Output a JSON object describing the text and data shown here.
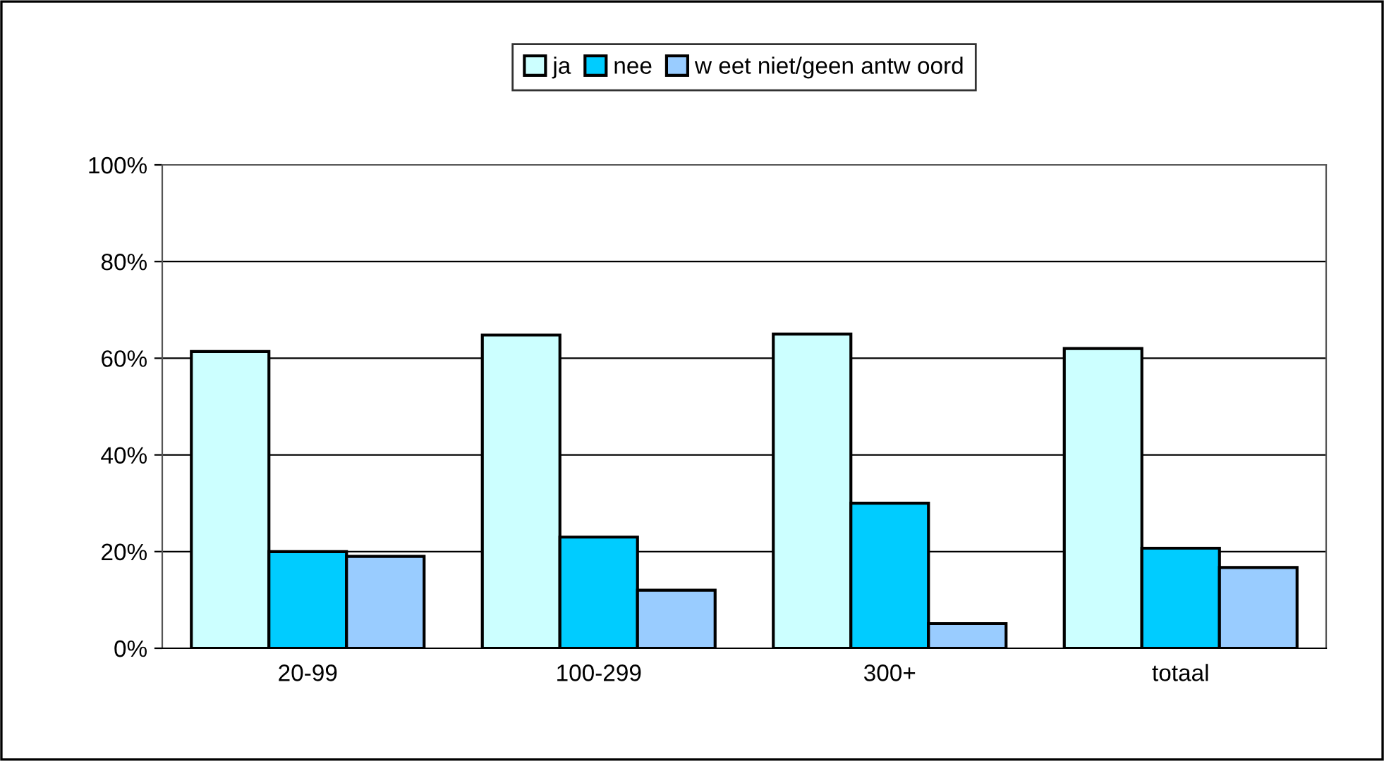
{
  "chart_data": {
    "type": "bar",
    "categories": [
      "20-99",
      "100-299",
      "300+",
      "totaal"
    ],
    "series": [
      {
        "name": "ja",
        "color": "#ccffff",
        "values": [
          61.4,
          64.8,
          65,
          62
        ]
      },
      {
        "name": "nee",
        "color": "#00ccff",
        "values": [
          20,
          23,
          30,
          20.7
        ]
      },
      {
        "name": "w eet niet/geen antw oord",
        "color": "#99ccff",
        "values": [
          19,
          12,
          5.1,
          16.7
        ]
      }
    ],
    "ylim": [
      0,
      100
    ],
    "yticks": [
      {
        "value": 0,
        "label": "0%"
      },
      {
        "value": 20,
        "label": "20%"
      },
      {
        "value": 40,
        "label": "40%"
      },
      {
        "value": 60,
        "label": "60%"
      },
      {
        "value": 80,
        "label": "80%"
      },
      {
        "value": 100,
        "label": "100%"
      }
    ],
    "grid": "y",
    "legend": "top"
  }
}
